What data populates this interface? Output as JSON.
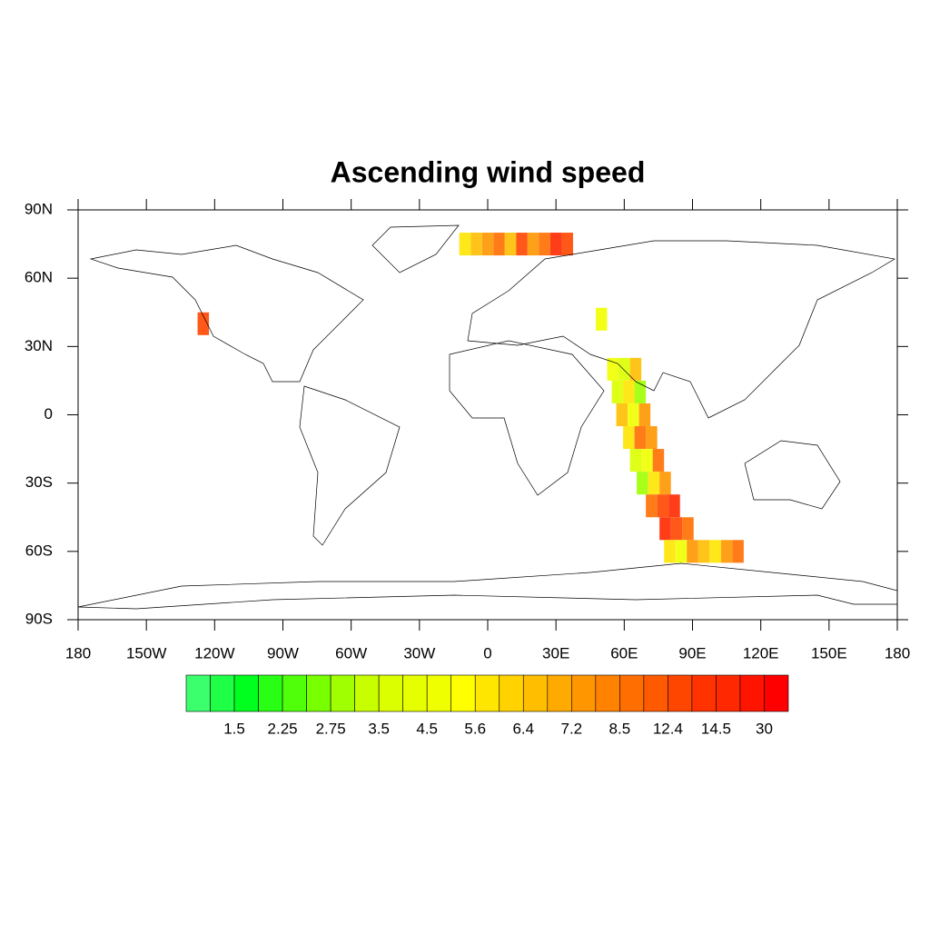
{
  "chart_data": {
    "type": "map",
    "title": "Ascending wind speed",
    "xlim": [
      -180,
      180
    ],
    "ylim": [
      -90,
      90
    ],
    "xticks": [
      {
        "value": -180,
        "label": "180"
      },
      {
        "value": -150,
        "label": "150W"
      },
      {
        "value": -120,
        "label": "120W"
      },
      {
        "value": -90,
        "label": "90W"
      },
      {
        "value": -60,
        "label": "60W"
      },
      {
        "value": -30,
        "label": "30W"
      },
      0,
      {
        "value": 30,
        "label": "30E"
      },
      {
        "value": 60,
        "label": "60E"
      },
      {
        "value": 90,
        "label": "90E"
      },
      {
        "value": 120,
        "label": "120E"
      },
      {
        "value": 150,
        "label": "150E"
      },
      {
        "value": 180,
        "label": "180"
      }
    ],
    "yticks": [
      {
        "value": 90,
        "label": "90N"
      },
      {
        "value": 60,
        "label": "60N"
      },
      {
        "value": 30,
        "label": "30N"
      },
      0,
      {
        "value": -30,
        "label": "30S"
      },
      {
        "value": -60,
        "label": "60S"
      },
      {
        "value": -90,
        "label": "90S"
      }
    ],
    "colorbar": {
      "colors": [
        "#3cff6e",
        "#1eff46",
        "#00ff1e",
        "#28ff14",
        "#50ff0a",
        "#78ff00",
        "#a0ff00",
        "#c8ff00",
        "#dcff00",
        "#e6ff00",
        "#f0ff00",
        "#ffff00",
        "#ffe600",
        "#ffd200",
        "#ffbe00",
        "#ffaa00",
        "#ff9600",
        "#ff8200",
        "#ff6e00",
        "#ff5a00",
        "#ff4600",
        "#ff3200",
        "#ff2800",
        "#ff1400",
        "#ff0000"
      ],
      "labels": [
        1.5,
        2.25,
        2.75,
        3.5,
        4.5,
        5.6,
        6.4,
        7.2,
        8.5,
        12.4,
        14.5,
        30
      ]
    },
    "swath": {
      "lon": [
        55,
        60,
        65,
        57,
        62,
        67,
        59,
        64,
        69,
        62,
        67,
        72,
        65,
        70,
        75,
        68,
        73,
        78,
        72,
        77,
        82,
        78,
        83,
        88,
        80,
        85,
        90,
        95,
        100,
        105,
        110,
        -10,
        -5,
        0,
        5,
        10,
        15,
        20,
        25,
        30,
        35,
        -125,
        50
      ],
      "lat": [
        20,
        20,
        20,
        10,
        10,
        10,
        0,
        0,
        0,
        -10,
        -10,
        -10,
        -20,
        -20,
        -20,
        -30,
        -30,
        -30,
        -40,
        -40,
        -40,
        -50,
        -50,
        -50,
        -60,
        -60,
        -60,
        -60,
        -60,
        -60,
        -60,
        75,
        75,
        75,
        75,
        75,
        75,
        75,
        75,
        75,
        75,
        40,
        42
      ],
      "values": [
        4.5,
        3.5,
        6.4,
        3.5,
        5.6,
        2.75,
        6.4,
        4.5,
        7.2,
        5.6,
        8.5,
        7.2,
        3.5,
        4.5,
        8.5,
        2.75,
        5.6,
        7.2,
        8.5,
        12.4,
        14.5,
        14.5,
        12.4,
        8.5,
        5.6,
        4.5,
        7.2,
        6.4,
        5.6,
        7.2,
        8.5,
        5.6,
        6.4,
        7.2,
        8.5,
        6.4,
        12.4,
        7.2,
        8.5,
        14.5,
        12.4,
        12.4,
        4.5
      ]
    }
  }
}
